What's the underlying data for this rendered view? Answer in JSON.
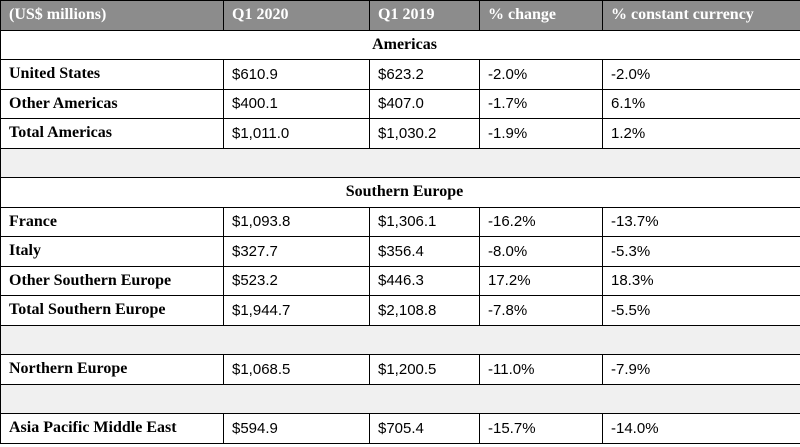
{
  "header": [
    "(US$ millions)",
    "Q1 2020",
    "Q1 2019",
    "% change",
    "% constant currency"
  ],
  "rows": [
    {
      "type": "section",
      "title": "Americas"
    },
    {
      "type": "data",
      "name": "United States",
      "values": [
        "$610.9",
        "$623.2",
        "-2.0%",
        "-2.0%"
      ]
    },
    {
      "type": "data",
      "name": "Other Americas",
      "values": [
        "$400.1",
        "$407.0",
        "-1.7%",
        "6.1%"
      ]
    },
    {
      "type": "data",
      "name": "Total Americas",
      "values": [
        "$1,011.0",
        "$1,030.2",
        "-1.9%",
        "1.2%"
      ]
    },
    {
      "type": "spacer"
    },
    {
      "type": "section",
      "title": "Southern Europe"
    },
    {
      "type": "data",
      "name": "France",
      "values": [
        "$1,093.8",
        "$1,306.1",
        "-16.2%",
        "-13.7%"
      ]
    },
    {
      "type": "data",
      "name": "Italy",
      "values": [
        "$327.7",
        "$356.4",
        "-8.0%",
        "-5.3%"
      ]
    },
    {
      "type": "data",
      "name": "Other Southern Europe",
      "values": [
        "$523.2",
        "$446.3",
        "17.2%",
        "18.3%"
      ]
    },
    {
      "type": "data",
      "name": "Total Southern Europe",
      "values": [
        "$1,944.7",
        "$2,108.8",
        "-7.8%",
        "-5.5%"
      ]
    },
    {
      "type": "spacer"
    },
    {
      "type": "data",
      "name": "Northern Europe",
      "values": [
        "$1,068.5",
        "$1,200.5",
        "-11.0%",
        "-7.9%"
      ]
    },
    {
      "type": "spacer"
    },
    {
      "type": "data",
      "name": "Asia Pacific Middle East",
      "values": [
        "$594.9",
        "$705.4",
        "-15.7%",
        "-14.0%"
      ]
    }
  ]
}
